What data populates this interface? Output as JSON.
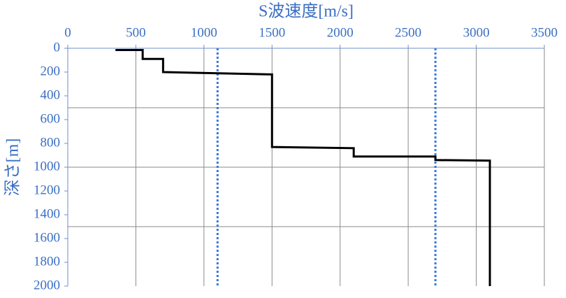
{
  "chart_data": {
    "type": "line",
    "title": "S波速度[m/s]",
    "y_label": "深さ[m]",
    "x": [
      350,
      550,
      550,
      700,
      700,
      1500,
      1500,
      2100,
      2100,
      2700,
      2700,
      3100,
      3100
    ],
    "series": [
      {
        "color": "#000000",
        "values": [
          15,
          15,
          90,
          90,
          200,
          220,
          830,
          840,
          910,
          910,
          940,
          945,
          2000
        ]
      }
    ],
    "reference_lines": {
      "color": "#3a78d8",
      "x": [
        1100,
        2700
      ]
    },
    "xlim": [
      0,
      3500
    ],
    "xticks": [
      0,
      500,
      1000,
      1500,
      2000,
      2500,
      3000,
      3500
    ],
    "ylim": [
      0,
      2000
    ],
    "yticks": [
      0,
      200,
      400,
      600,
      800,
      1000,
      1200,
      1400,
      1600,
      1800,
      2000
    ],
    "ygrid": [
      500,
      1000,
      1500
    ],
    "y_inverted": true,
    "x_axis_position": "top",
    "grid": true
  }
}
